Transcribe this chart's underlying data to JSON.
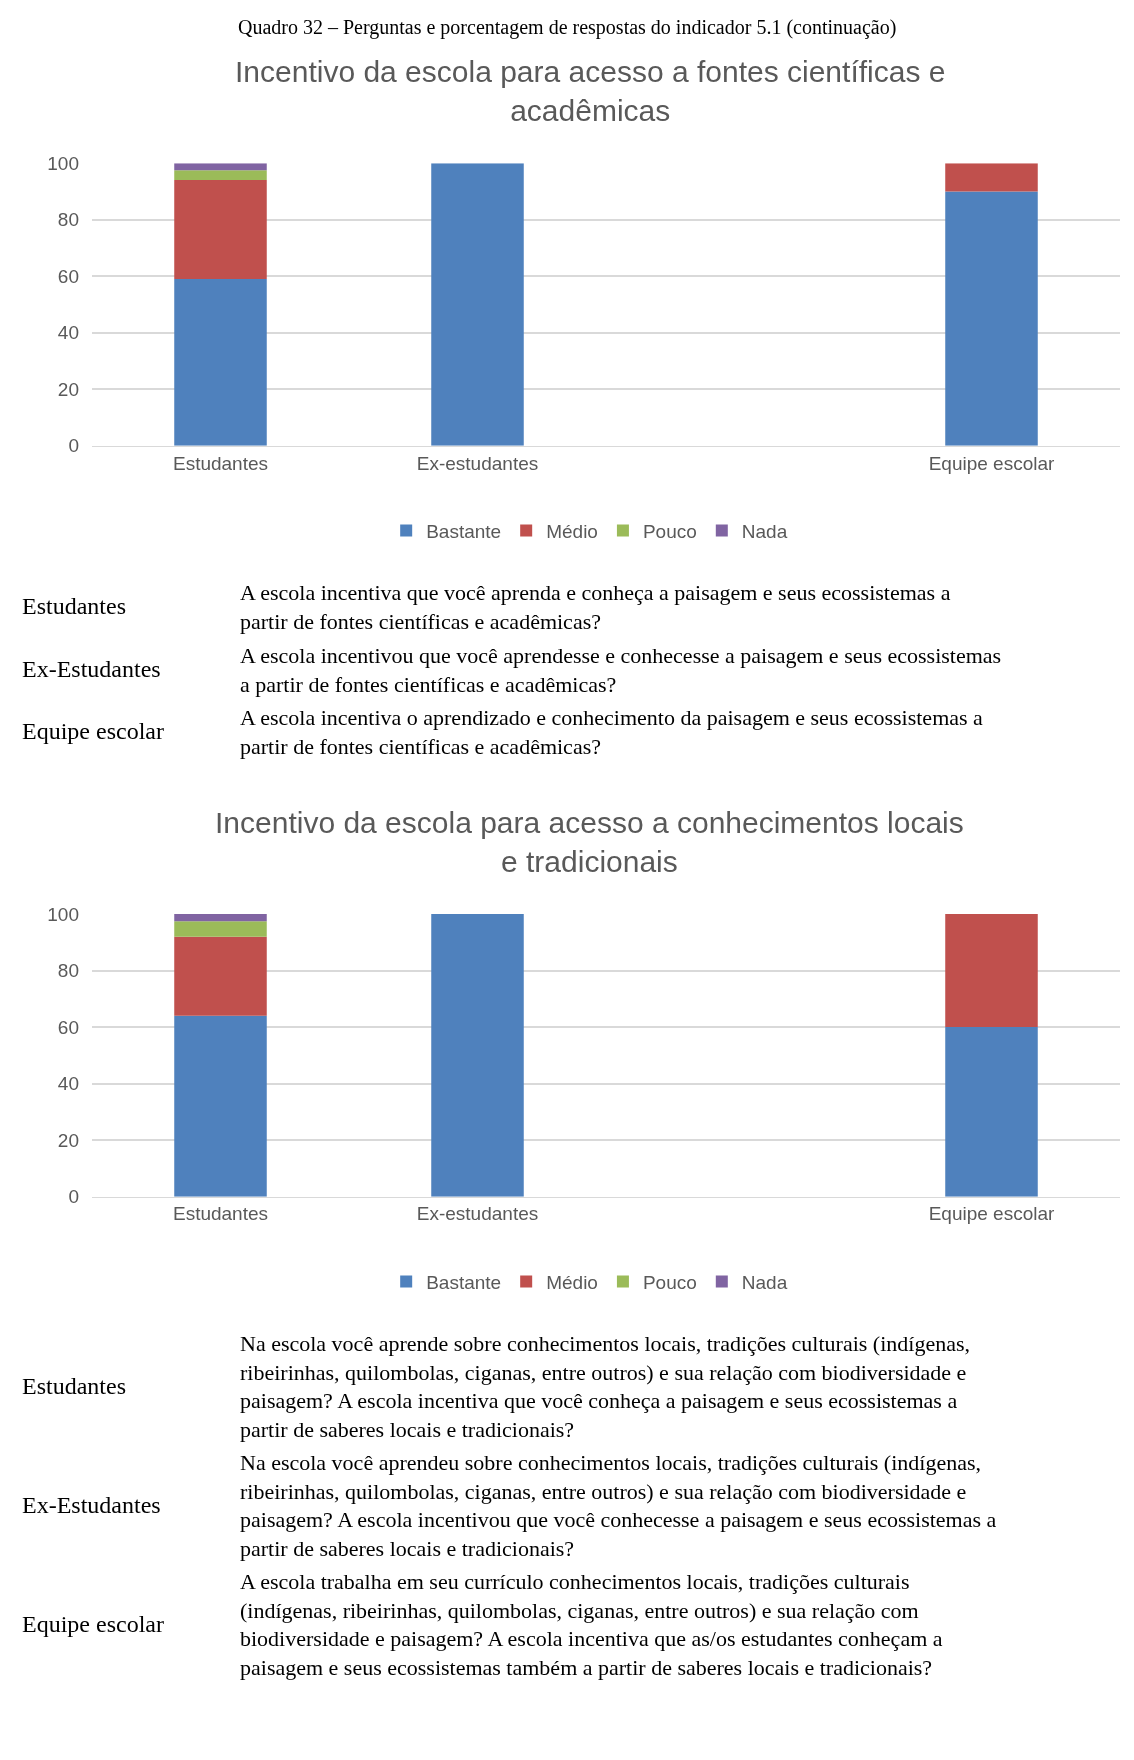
{
  "chart_data": [
    {
      "type": "bar",
      "title": "Incentivo da escola para acesso a fontes científicas e acadêmicas",
      "categories": [
        "Estudantes",
        "Ex-estudantes",
        null,
        "Equipe escolar"
      ],
      "stacked": true,
      "ylim": [
        0,
        100
      ],
      "yticks": [
        0,
        20,
        40,
        60,
        80,
        100
      ],
      "grid": "y",
      "legend": "bottom",
      "series": [
        {
          "name": "Bastante",
          "color": "#4f81bd",
          "values": [
            59,
            100,
            null,
            90
          ]
        },
        {
          "name": "Médio",
          "color": "#c0504d",
          "values": [
            35,
            0,
            null,
            10
          ]
        },
        {
          "name": "Pouco",
          "color": "#9bbb59",
          "values": [
            3.5,
            0,
            null,
            0
          ]
        },
        {
          "name": "Nada",
          "color": "#8064a2",
          "values": [
            2.5,
            0,
            null,
            0
          ]
        }
      ],
      "annotations": [
        "Quadro 32 – Perguntas e porcentagem de respostas do indicador 5.1 (continuação)",
        "Estudantes",
        "A escola incentiva que você aprenda e conheça a paisagem e seus ecossistemas a partir de fontes científicas e acadêmicas?",
        "Ex-Estudantes",
        "A escola incentivou que você aprendesse e conhecesse a paisagem e seus ecossistemas a partir de fontes científicas e acadêmicas?",
        "Equipe escolar",
        "A escola incentiva o aprendizado e conhecimento da paisagem e seus ecossistemas a partir de fontes científicas e acadêmicas?"
      ]
    },
    {
      "type": "bar",
      "title": "Incentivo da escola para acesso a conhecimentos locais e tradicionais",
      "categories": [
        "Estudantes",
        "Ex-estudantes",
        null,
        "Equipe escolar"
      ],
      "stacked": true,
      "ylim": [
        0,
        100
      ],
      "yticks": [
        0,
        20,
        40,
        60,
        80,
        100
      ],
      "grid": "y",
      "legend": "bottom",
      "series": [
        {
          "name": "Bastante",
          "color": "#4f81bd",
          "values": [
            64,
            100,
            null,
            60
          ]
        },
        {
          "name": "Médio",
          "color": "#c0504d",
          "values": [
            28,
            0,
            null,
            40
          ]
        },
        {
          "name": "Pouco",
          "color": "#9bbb59",
          "values": [
            5.5,
            0,
            null,
            0
          ]
        },
        {
          "name": "Nada",
          "color": "#8064a2",
          "values": [
            2.5,
            0,
            null,
            0
          ]
        }
      ],
      "annotations": [
        "Estudantes",
        "Na escola você aprende sobre conhecimentos locais, tradições culturais (indígenas, ribeirinhas, quilombolas, ciganas, entre outros) e sua relação com biodiversidade e paisagem? A escola incentiva que você conheça a paisagem e seus ecossistemas a partir de saberes locais e tradicionais?",
        "Ex-Estudantes",
        "Na escola você aprendeu sobre conhecimentos locais, tradições culturais (indígenas, ribeirinhas, quilombolas, ciganas, entre outros) e sua relação com biodiversidade e paisagem? A escola incentivou que você conhecesse a paisagem e seus ecossistemas a partir de saberes locais e tradicionais?",
        "Equipe escolar",
        "A escola trabalha em seu currículo conhecimentos locais, tradições culturais (indígenas, ribeirinhas, quilombolas, ciganas, entre outros) e sua relação com biodiversidade e paisagem? A escola incentiva que as/os estudantes conheçam a paisagem e seus ecossistemas também a partir de saberes locais e tradicionais?"
      ]
    }
  ]
}
